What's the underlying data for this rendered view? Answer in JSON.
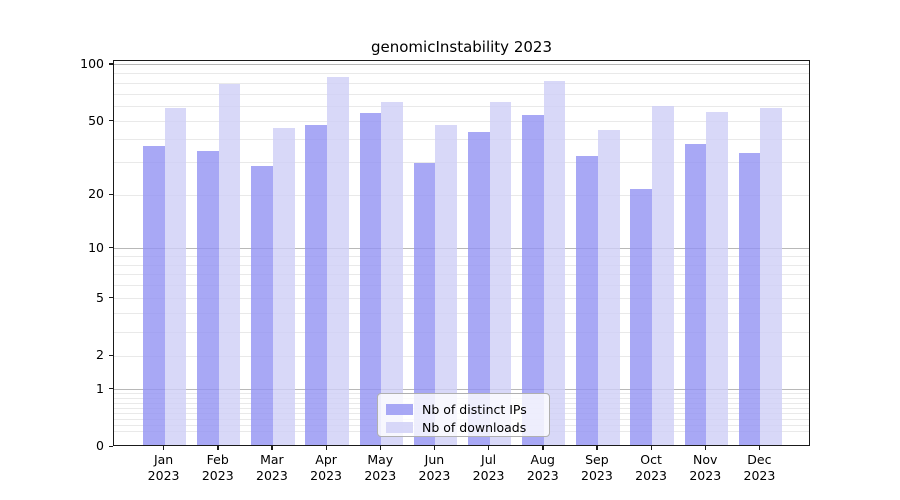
{
  "chart_data": {
    "type": "bar",
    "title": "genomicInstability 2023",
    "categories": [
      "Jan",
      "Feb",
      "Mar",
      "Apr",
      "May",
      "Jun",
      "Jul",
      "Aug",
      "Sep",
      "Oct",
      "Nov",
      "Dec"
    ],
    "year_label": "2023",
    "series": [
      {
        "name": "Nb of distinct IPs",
        "color": "rgba(146,146,243,0.8)",
        "values": [
          36,
          34,
          28,
          47,
          54,
          29,
          43,
          53,
          32,
          21,
          37,
          33
        ]
      },
      {
        "name": "Nb of downloads",
        "color": "rgba(206,206,246,0.8)",
        "values": [
          58,
          77,
          45,
          84,
          62,
          47,
          62,
          80,
          44,
          59,
          55,
          58
        ]
      }
    ],
    "xlabel": "",
    "ylabel": "",
    "yscale": "log1p",
    "ylim": [
      0,
      105
    ],
    "yticks": [
      0,
      1,
      2,
      5,
      10,
      20,
      50,
      100
    ],
    "gridlines_major": [
      1,
      10,
      100
    ],
    "gridlines_minor": [
      0.2,
      0.3,
      0.4,
      0.5,
      0.6,
      0.7,
      0.8,
      0.9,
      2,
      3,
      4,
      5,
      6,
      7,
      8,
      9,
      20,
      30,
      40,
      50,
      60,
      70,
      80,
      90
    ],
    "grid": true,
    "legend_position": "lower center",
    "colors": {
      "ips_bar": "rgba(146,146,243,0.8)",
      "downloads_bar": "rgba(206,206,246,0.8)",
      "spine": "#1a1a1a",
      "grid_major": "#b8b8b8",
      "grid_minor": "#e9e9e9",
      "background": "#ffffff"
    }
  }
}
